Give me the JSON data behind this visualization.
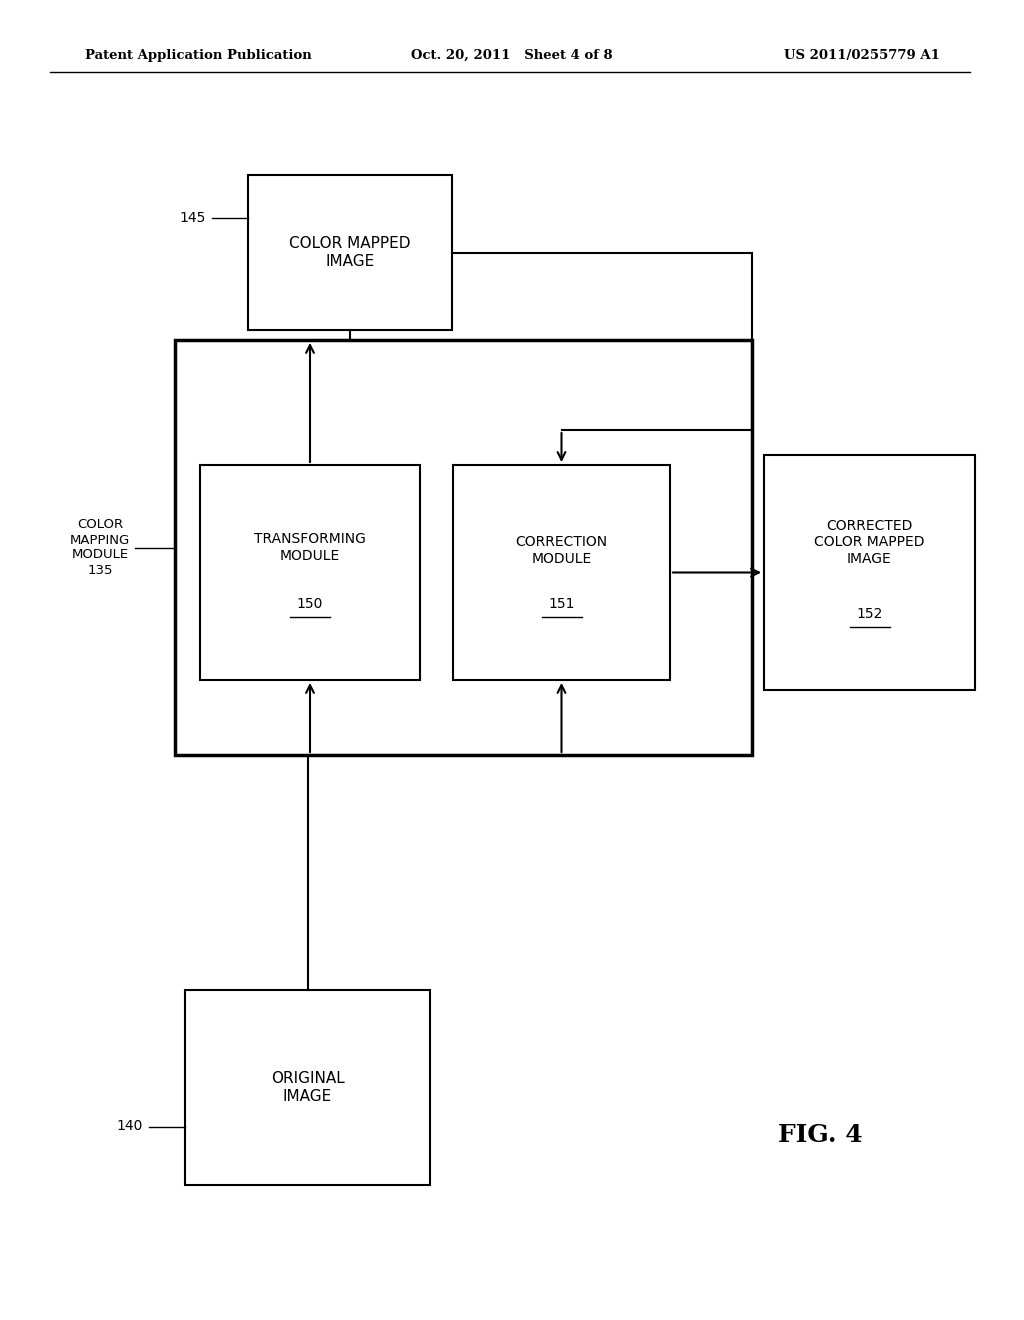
{
  "bg_color": "#ffffff",
  "header_left": "Patent Application Publication",
  "header_center": "Oct. 20, 2011   Sheet 4 of 8",
  "header_right": "US 2011/0255779 A1",
  "fig_label": "FIG. 4"
}
